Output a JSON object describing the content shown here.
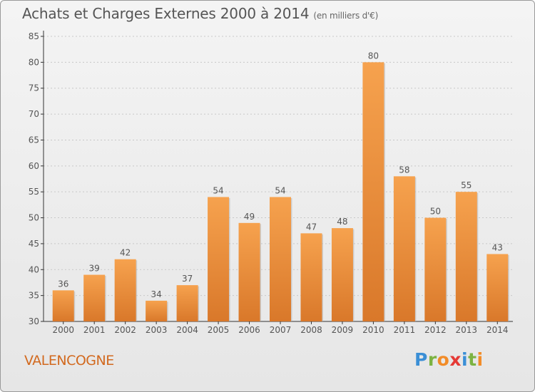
{
  "title": "Achats et Charges Externes 2000 à 2014",
  "unit_note": "(en milliers d'€)",
  "place": "VALENCOGNE",
  "logo": {
    "letters": [
      "P",
      "r",
      "o",
      "x",
      "i",
      "t",
      "i"
    ],
    "colors": [
      "#3b8fd6",
      "#7cb342",
      "#f28c28",
      "#e53935",
      "#3b8fd6",
      "#7cb342",
      "#f28c28"
    ]
  },
  "colors": {
    "bar_light": "#f6a24e",
    "bar_dark": "#d9782a",
    "text": "#555555",
    "axis": "#333333",
    "grid": "#c8c8c8"
  },
  "chart_data": {
    "type": "bar",
    "title": "Achats et Charges Externes 2000 à 2014",
    "categories": [
      "2000",
      "2001",
      "2002",
      "2003",
      "2004",
      "2005",
      "2006",
      "2007",
      "2008",
      "2009",
      "2010",
      "2011",
      "2012",
      "2013",
      "2014"
    ],
    "values": [
      36,
      39,
      42,
      34,
      37,
      54,
      49,
      54,
      47,
      48,
      80,
      58,
      50,
      55,
      43
    ],
    "ylim": [
      30,
      85
    ],
    "yticks": [
      30,
      35,
      40,
      45,
      50,
      55,
      60,
      65,
      70,
      75,
      80,
      85
    ],
    "grid": true,
    "data_labels": true
  }
}
